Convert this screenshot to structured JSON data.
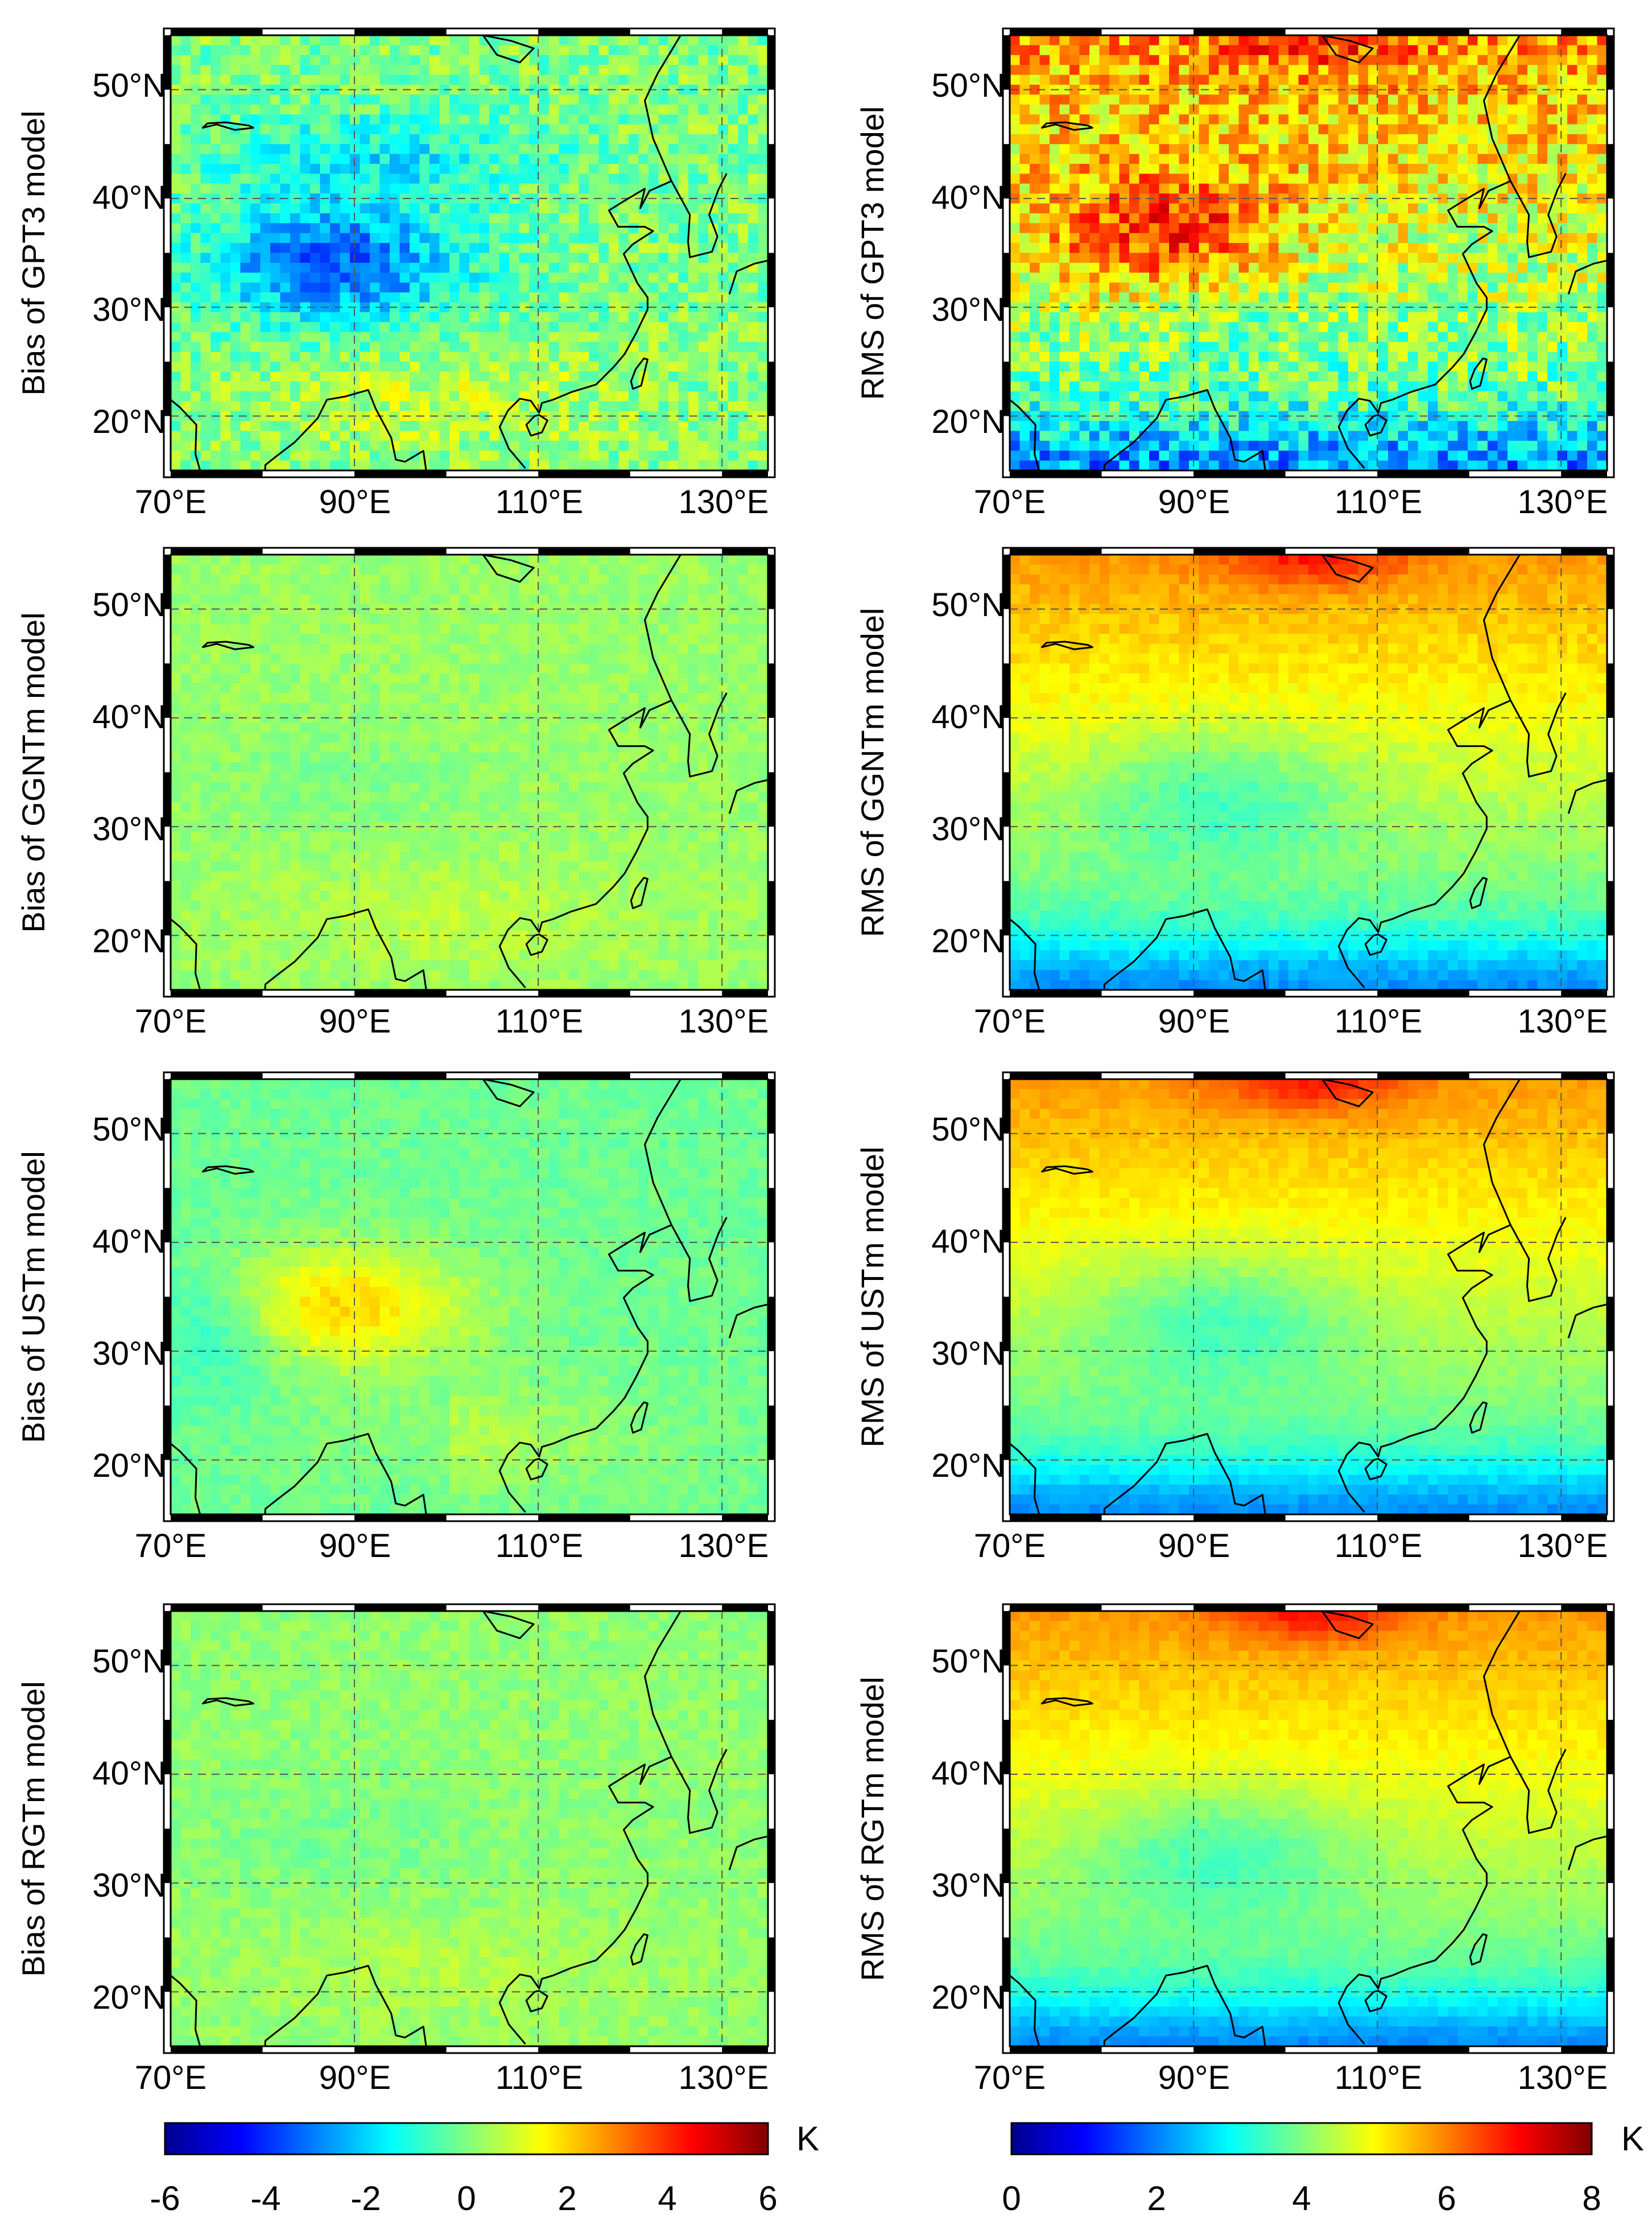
{
  "figure": {
    "lon_ticks": [
      "70°E",
      "90°E",
      "110°E",
      "130°E"
    ],
    "lat_ticks": [
      "50°N",
      "40°N",
      "30°N",
      "20°N"
    ],
    "extent": {
      "lon_min": 70,
      "lon_max": 135,
      "lat_min": 15,
      "lat_max": 55
    }
  },
  "panels": [
    {
      "id": "bias-gpt3",
      "metric": "bias",
      "ylabel": "Bias of GPT3 model",
      "noise": 1.0,
      "base": 0.0
    },
    {
      "id": "rms-gpt3",
      "metric": "rms",
      "ylabel": "RMS of GPT3 model",
      "noise": 1.0,
      "base": 0.0
    },
    {
      "id": "bias-ggntm",
      "metric": "bias",
      "ylabel": "Bias of GGNTm model",
      "noise": 0.35,
      "base": 0.3
    },
    {
      "id": "rms-ggntm",
      "metric": "rms",
      "ylabel": "RMS of GGNTm model",
      "noise": 0.2,
      "base": 0.0
    },
    {
      "id": "bias-ustm",
      "metric": "bias",
      "ylabel": "Bias of USTm model",
      "noise": 0.3,
      "base": -0.2
    },
    {
      "id": "rms-ustm",
      "metric": "rms",
      "ylabel": "RMS of USTm model",
      "noise": 0.15,
      "base": 0.0
    },
    {
      "id": "bias-rgtm",
      "metric": "bias",
      "ylabel": "Bias of RGTm model",
      "noise": 0.35,
      "base": 0.2
    },
    {
      "id": "rms-rgtm",
      "metric": "rms",
      "ylabel": "RMS of RGTm model",
      "noise": 0.15,
      "base": 0.0
    }
  ],
  "colorbars": {
    "bias": {
      "min": -6,
      "max": 6,
      "ticks": [
        "-6",
        "-4",
        "-2",
        "0",
        "2",
        "4",
        "6"
      ],
      "unit": "K"
    },
    "rms": {
      "min": 0,
      "max": 8,
      "ticks": [
        "0",
        "2",
        "4",
        "6",
        "8"
      ],
      "unit": "K"
    }
  },
  "colormap": [
    "#00008f",
    "#0000ff",
    "#0080ff",
    "#00ffff",
    "#80ff80",
    "#ffff00",
    "#ff8000",
    "#ff0000",
    "#800000"
  ],
  "colors": {
    "coastline": "#000000",
    "grid": "#555555",
    "frame": "#000000"
  }
}
